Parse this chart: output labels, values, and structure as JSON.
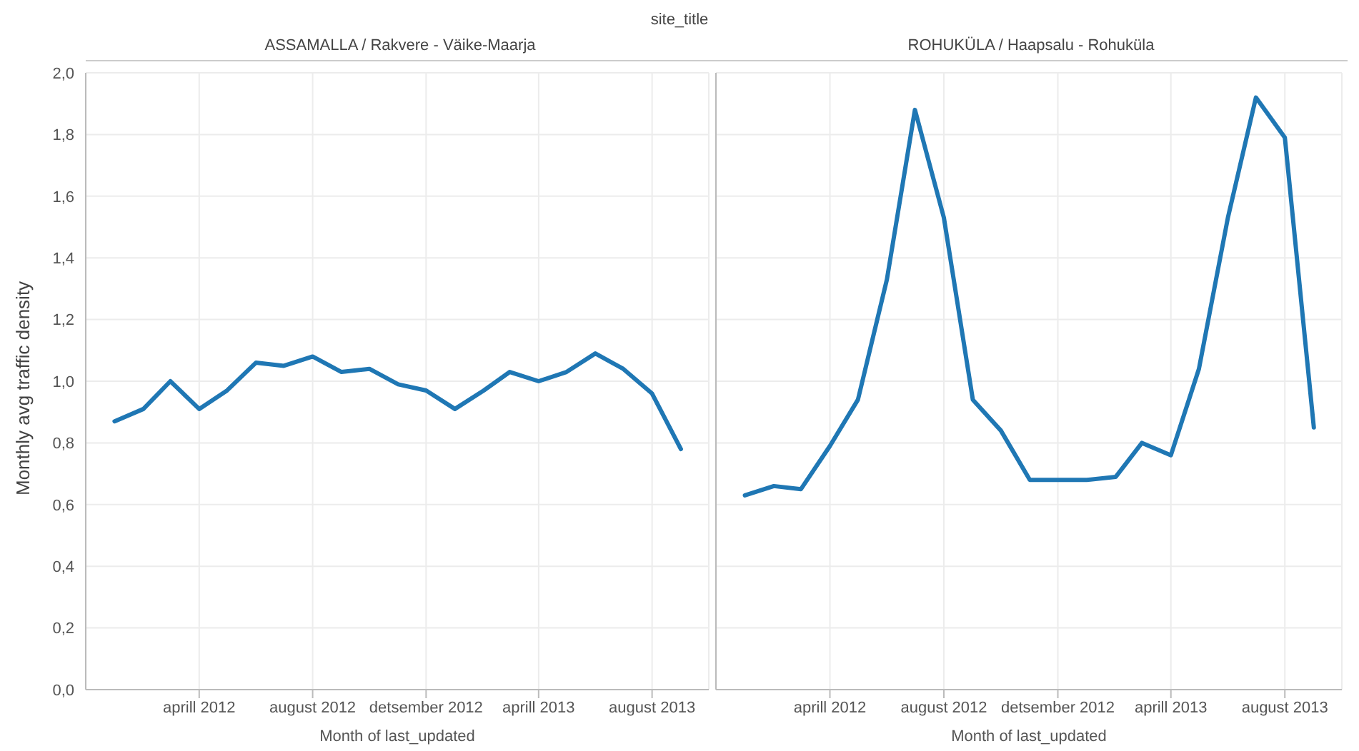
{
  "chart_data": [
    {
      "type": "line",
      "title": "ASSAMALLA / Rakvere - Väike-Maarja",
      "annotations": [
        "site_title"
      ],
      "xlabel": "Month of last_updated",
      "ylabel": "Monthly avg traffic density",
      "x": [
        "2012-01",
        "2012-02",
        "2012-03",
        "2012-04",
        "2012-05",
        "2012-06",
        "2012-07",
        "2012-08",
        "2012-09",
        "2012-10",
        "2012-11",
        "2012-12",
        "2013-01",
        "2013-02",
        "2013-03",
        "2013-04",
        "2013-05",
        "2013-06",
        "2013-07",
        "2013-08",
        "2013-09"
      ],
      "series": [
        {
          "color": "#1f77b4",
          "values": [
            0.87,
            0.91,
            1.0,
            0.91,
            0.97,
            1.06,
            1.05,
            1.08,
            1.03,
            1.04,
            0.99,
            0.97,
            0.91,
            0.97,
            1.03,
            1.0,
            1.03,
            1.09,
            1.04,
            0.96,
            0.78
          ]
        }
      ],
      "xlim": [
        "2011-12",
        "2013-10"
      ],
      "xticks": [
        {
          "value": "2012-04",
          "label": "aprill 2012"
        },
        {
          "value": "2012-08",
          "label": "august 2012"
        },
        {
          "value": "2012-12",
          "label": "detsember 2012"
        },
        {
          "value": "2013-04",
          "label": "aprill 2013"
        },
        {
          "value": "2013-08",
          "label": "august 2013"
        }
      ],
      "ylim": [
        0,
        2
      ],
      "yticks": [
        {
          "value": 0,
          "label": "0,0"
        },
        {
          "value": 0.2,
          "label": "0,2"
        },
        {
          "value": 0.4,
          "label": "0,4"
        },
        {
          "value": 0.6,
          "label": "0,6"
        },
        {
          "value": 0.8,
          "label": "0,8"
        },
        {
          "value": 1,
          "label": "1,0"
        },
        {
          "value": 1.2,
          "label": "1,2"
        },
        {
          "value": 1.4,
          "label": "1,4"
        },
        {
          "value": 1.6,
          "label": "1,6"
        },
        {
          "value": 1.8,
          "label": "1,8"
        },
        {
          "value": 2,
          "label": "2,0"
        }
      ],
      "grid": true,
      "legend": false,
      "marker": "none",
      "line_style": "solid"
    },
    {
      "type": "line",
      "title": "ROHUKÜLA / Haapsalu - Rohuküla",
      "xlabel": "Month of last_updated",
      "x": [
        "2012-01",
        "2012-02",
        "2012-03",
        "2012-04",
        "2012-05",
        "2012-06",
        "2012-07",
        "2012-08",
        "2012-09",
        "2012-10",
        "2012-11",
        "2012-12",
        "2013-01",
        "2013-02",
        "2013-03",
        "2013-04",
        "2013-05",
        "2013-06",
        "2013-07",
        "2013-08",
        "2013-09"
      ],
      "series": [
        {
          "color": "#1f77b4",
          "values": [
            0.63,
            0.66,
            0.65,
            0.79,
            0.94,
            1.33,
            1.88,
            1.53,
            0.94,
            0.84,
            0.68,
            0.68,
            0.68,
            0.69,
            0.8,
            0.76,
            1.04,
            1.53,
            1.92,
            1.79,
            0.85
          ]
        }
      ],
      "xlim": [
        "2011-12",
        "2013-10"
      ],
      "xticks": [
        {
          "value": "2012-04",
          "label": "aprill 2012"
        },
        {
          "value": "2012-08",
          "label": "august 2012"
        },
        {
          "value": "2012-12",
          "label": "detsember 2012"
        },
        {
          "value": "2013-04",
          "label": "aprill 2013"
        },
        {
          "value": "2013-08",
          "label": "august 2013"
        }
      ],
      "ylim": [
        0,
        2
      ],
      "yticks": [
        {
          "value": 0,
          "label": null
        },
        {
          "value": 0.2,
          "label": null
        },
        {
          "value": 0.4,
          "label": null
        },
        {
          "value": 0.6,
          "label": null
        },
        {
          "value": 0.8,
          "label": null
        },
        {
          "value": 1,
          "label": null
        },
        {
          "value": 1.2,
          "label": null
        },
        {
          "value": 1.4,
          "label": null
        },
        {
          "value": 1.6,
          "label": null
        },
        {
          "value": 1.8,
          "label": null
        },
        {
          "value": 2,
          "label": null
        }
      ],
      "tick_labels": "x",
      "grid": true,
      "legend": false,
      "marker": "none",
      "line_style": "solid"
    }
  ]
}
